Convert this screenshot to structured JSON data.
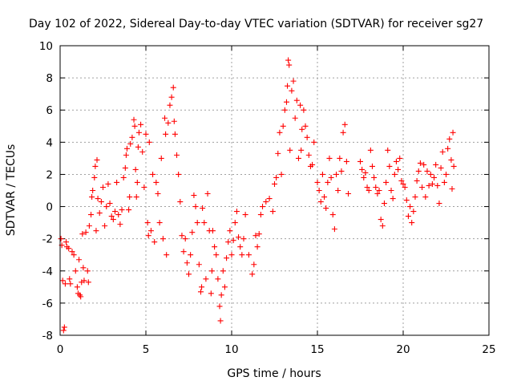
{
  "chart_data": {
    "type": "scatter",
    "title": "Day 102 of 2022, Sidereal Day-to-day VTEC variation (SDTVAR) for receiver sg27",
    "xlabel": "GPS time / hours",
    "ylabel": "SDTVAR / TECUs",
    "xlim": [
      0,
      25
    ],
    "ylim": [
      -8,
      10
    ],
    "xticks": [
      "0",
      "5",
      "10",
      "15",
      "20",
      "25"
    ],
    "yticks": [
      "-8",
      "-6",
      "-4",
      "-2",
      "0",
      "2",
      "4",
      "6",
      "8",
      "10"
    ],
    "grid": true,
    "marker": "+",
    "color": "#ff0000",
    "series": [
      {
        "name": "sg27",
        "points": [
          [
            0.05,
            -2.0
          ],
          [
            0.1,
            -2.4
          ],
          [
            0.15,
            -4.6
          ],
          [
            0.2,
            -7.7
          ],
          [
            0.25,
            -7.5
          ],
          [
            0.3,
            -4.8
          ],
          [
            0.35,
            -2.2
          ],
          [
            0.4,
            -2.5
          ],
          [
            0.5,
            -2.6
          ],
          [
            0.55,
            -4.5
          ],
          [
            0.6,
            -4.8
          ],
          [
            0.7,
            -2.8
          ],
          [
            0.8,
            -3.0
          ],
          [
            0.9,
            -4.0
          ],
          [
            1.0,
            -5.0
          ],
          [
            1.05,
            -5.4
          ],
          [
            1.1,
            -3.3
          ],
          [
            1.15,
            -5.5
          ],
          [
            1.2,
            -5.6
          ],
          [
            1.25,
            -4.7
          ],
          [
            1.3,
            -1.7
          ],
          [
            1.35,
            -3.8
          ],
          [
            1.4,
            -4.6
          ],
          [
            1.5,
            -1.6
          ],
          [
            1.6,
            -4.0
          ],
          [
            1.65,
            -4.7
          ],
          [
            1.7,
            -1.2
          ],
          [
            1.8,
            -0.5
          ],
          [
            1.85,
            0.6
          ],
          [
            1.9,
            1.0
          ],
          [
            2.0,
            1.8
          ],
          [
            2.05,
            2.5
          ],
          [
            2.1,
            -1.5
          ],
          [
            2.15,
            2.9
          ],
          [
            2.2,
            0.5
          ],
          [
            2.3,
            -0.4
          ],
          [
            2.4,
            0.3
          ],
          [
            2.5,
            1.2
          ],
          [
            2.6,
            -1.2
          ],
          [
            2.7,
            0.0
          ],
          [
            2.8,
            1.4
          ],
          [
            2.9,
            0.2
          ],
          [
            3.0,
            -0.6
          ],
          [
            3.1,
            -0.8
          ],
          [
            3.2,
            -0.3
          ],
          [
            3.3,
            1.5
          ],
          [
            3.4,
            -0.5
          ],
          [
            3.5,
            -1.1
          ],
          [
            3.6,
            -0.2
          ],
          [
            3.7,
            1.8
          ],
          [
            3.8,
            2.4
          ],
          [
            3.85,
            3.2
          ],
          [
            3.9,
            3.6
          ],
          [
            4.0,
            -0.2
          ],
          [
            4.05,
            0.6
          ],
          [
            4.1,
            3.9
          ],
          [
            4.2,
            4.3
          ],
          [
            4.3,
            5.4
          ],
          [
            4.35,
            5.0
          ],
          [
            4.4,
            2.3
          ],
          [
            4.45,
            0.6
          ],
          [
            4.5,
            1.5
          ],
          [
            4.55,
            3.7
          ],
          [
            4.6,
            4.6
          ],
          [
            4.7,
            5.1
          ],
          [
            4.8,
            3.4
          ],
          [
            4.9,
            1.2
          ],
          [
            5.0,
            4.5
          ],
          [
            5.1,
            -1.0
          ],
          [
            5.15,
            -1.8
          ],
          [
            5.2,
            4.0
          ],
          [
            5.3,
            -1.5
          ],
          [
            5.4,
            2.0
          ],
          [
            5.5,
            -2.2
          ],
          [
            5.6,
            1.5
          ],
          [
            5.7,
            0.8
          ],
          [
            5.8,
            -1.0
          ],
          [
            5.9,
            3.0
          ],
          [
            6.0,
            -2.0
          ],
          [
            6.1,
            5.5
          ],
          [
            6.15,
            4.5
          ],
          [
            6.2,
            -3.0
          ],
          [
            6.3,
            5.2
          ],
          [
            6.4,
            6.3
          ],
          [
            6.5,
            6.8
          ],
          [
            6.6,
            7.4
          ],
          [
            6.65,
            5.3
          ],
          [
            6.7,
            4.5
          ],
          [
            6.8,
            3.2
          ],
          [
            6.9,
            2.0
          ],
          [
            7.0,
            0.3
          ],
          [
            7.1,
            -1.8
          ],
          [
            7.2,
            -2.8
          ],
          [
            7.3,
            -2.0
          ],
          [
            7.4,
            -3.5
          ],
          [
            7.5,
            -4.2
          ],
          [
            7.6,
            -3.0
          ],
          [
            7.7,
            -1.6
          ],
          [
            7.8,
            0.7
          ],
          [
            7.9,
            0.0
          ],
          [
            8.0,
            -1.0
          ],
          [
            8.1,
            -3.6
          ],
          [
            8.2,
            -5.3
          ],
          [
            8.25,
            -5.0
          ],
          [
            8.3,
            -0.1
          ],
          [
            8.4,
            -1.0
          ],
          [
            8.5,
            -4.5
          ],
          [
            8.6,
            0.8
          ],
          [
            8.7,
            -1.5
          ],
          [
            8.8,
            -5.4
          ],
          [
            8.85,
            -4.0
          ],
          [
            8.9,
            -1.5
          ],
          [
            9.0,
            -2.5
          ],
          [
            9.1,
            -3.0
          ],
          [
            9.2,
            -4.5
          ],
          [
            9.3,
            -6.2
          ],
          [
            9.35,
            -7.1
          ],
          [
            9.4,
            -5.5
          ],
          [
            9.5,
            -4.0
          ],
          [
            9.6,
            -5.0
          ],
          [
            9.7,
            -3.2
          ],
          [
            9.8,
            -2.2
          ],
          [
            9.9,
            -1.5
          ],
          [
            10.0,
            -3.0
          ],
          [
            10.1,
            -2.1
          ],
          [
            10.2,
            -1.0
          ],
          [
            10.3,
            -0.3
          ],
          [
            10.4,
            -1.9
          ],
          [
            10.5,
            -2.5
          ],
          [
            10.6,
            -3.0
          ],
          [
            10.7,
            -2.0
          ],
          [
            10.8,
            -0.5
          ],
          [
            11.0,
            -3.0
          ],
          [
            11.2,
            -4.2
          ],
          [
            11.3,
            -3.6
          ],
          [
            11.4,
            -1.8
          ],
          [
            11.5,
            -2.5
          ],
          [
            11.6,
            -1.7
          ],
          [
            11.7,
            -0.5
          ],
          [
            11.8,
            0.0
          ],
          [
            12.0,
            0.3
          ],
          [
            12.2,
            0.5
          ],
          [
            12.4,
            -0.3
          ],
          [
            12.5,
            1.4
          ],
          [
            12.6,
            1.8
          ],
          [
            12.7,
            3.3
          ],
          [
            12.8,
            4.6
          ],
          [
            12.9,
            2.0
          ],
          [
            13.0,
            5.0
          ],
          [
            13.1,
            6.0
          ],
          [
            13.2,
            6.5
          ],
          [
            13.25,
            7.5
          ],
          [
            13.3,
            9.1
          ],
          [
            13.35,
            8.8
          ],
          [
            13.4,
            3.5
          ],
          [
            13.5,
            7.2
          ],
          [
            13.6,
            7.8
          ],
          [
            13.7,
            5.5
          ],
          [
            13.8,
            6.6
          ],
          [
            13.9,
            3.0
          ],
          [
            14.0,
            6.3
          ],
          [
            14.05,
            3.5
          ],
          [
            14.1,
            4.8
          ],
          [
            14.2,
            6.0
          ],
          [
            14.3,
            5.0
          ],
          [
            14.4,
            4.3
          ],
          [
            14.5,
            3.2
          ],
          [
            14.6,
            2.5
          ],
          [
            14.7,
            2.6
          ],
          [
            14.8,
            4.0
          ],
          [
            15.0,
            1.5
          ],
          [
            15.1,
            1.0
          ],
          [
            15.2,
            0.3
          ],
          [
            15.3,
            2.0
          ],
          [
            15.4,
            0.6
          ],
          [
            15.5,
            -0.1
          ],
          [
            15.6,
            1.5
          ],
          [
            15.7,
            3.0
          ],
          [
            15.8,
            1.8
          ],
          [
            15.9,
            -0.5
          ],
          [
            16.0,
            -1.4
          ],
          [
            16.1,
            2.0
          ],
          [
            16.2,
            1.0
          ],
          [
            16.3,
            3.0
          ],
          [
            16.4,
            2.2
          ],
          [
            16.5,
            4.6
          ],
          [
            16.6,
            5.1
          ],
          [
            16.7,
            2.8
          ],
          [
            16.8,
            0.8
          ],
          [
            17.5,
            2.8
          ],
          [
            17.6,
            2.3
          ],
          [
            17.7,
            1.8
          ],
          [
            17.8,
            2.1
          ],
          [
            17.9,
            1.2
          ],
          [
            18.0,
            1.0
          ],
          [
            18.1,
            3.5
          ],
          [
            18.2,
            2.5
          ],
          [
            18.3,
            1.8
          ],
          [
            18.4,
            1.2
          ],
          [
            18.5,
            0.8
          ],
          [
            18.6,
            1.0
          ],
          [
            18.7,
            -0.8
          ],
          [
            18.8,
            -1.2
          ],
          [
            18.9,
            0.2
          ],
          [
            19.0,
            1.5
          ],
          [
            19.1,
            3.5
          ],
          [
            19.2,
            2.5
          ],
          [
            19.3,
            1.0
          ],
          [
            19.4,
            0.5
          ],
          [
            19.5,
            2.0
          ],
          [
            19.6,
            2.8
          ],
          [
            19.7,
            2.3
          ],
          [
            19.8,
            3.0
          ],
          [
            19.9,
            1.6
          ],
          [
            20.0,
            1.4
          ],
          [
            20.1,
            1.2
          ],
          [
            20.2,
            0.4
          ],
          [
            20.3,
            -0.6
          ],
          [
            20.4,
            0.0
          ],
          [
            20.5,
            -1.0
          ],
          [
            20.6,
            -0.3
          ],
          [
            20.7,
            0.6
          ],
          [
            20.8,
            1.6
          ],
          [
            20.9,
            2.2
          ],
          [
            21.0,
            2.7
          ],
          [
            21.1,
            1.2
          ],
          [
            21.2,
            2.6
          ],
          [
            21.3,
            0.6
          ],
          [
            21.4,
            2.2
          ],
          [
            21.5,
            1.3
          ],
          [
            21.6,
            2.0
          ],
          [
            21.7,
            1.4
          ],
          [
            21.8,
            1.8
          ],
          [
            21.9,
            2.6
          ],
          [
            22.0,
            1.3
          ],
          [
            22.1,
            0.2
          ],
          [
            22.2,
            2.4
          ],
          [
            22.3,
            3.4
          ],
          [
            22.4,
            1.5
          ],
          [
            22.5,
            2.0
          ],
          [
            22.6,
            3.6
          ],
          [
            22.7,
            4.2
          ],
          [
            22.8,
            2.9
          ],
          [
            22.85,
            1.1
          ],
          [
            22.9,
            4.6
          ],
          [
            22.95,
            2.5
          ]
        ]
      }
    ]
  }
}
